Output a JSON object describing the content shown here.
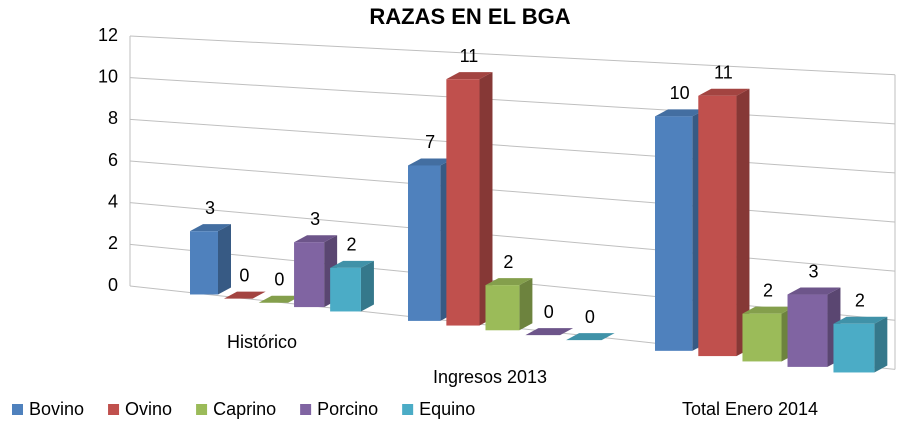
{
  "chart_data": {
    "type": "bar3d",
    "title": "RAZAS EN EL BGA",
    "categories": [
      "Histórico",
      "Ingresos 2013",
      "Total Enero 2014"
    ],
    "series": [
      {
        "name": "Bovino",
        "color": "#4f81bd",
        "values": [
          3,
          7,
          10
        ]
      },
      {
        "name": "Ovino",
        "color": "#c0504d",
        "values": [
          0,
          11,
          11
        ]
      },
      {
        "name": "Caprino",
        "color": "#9bbb59",
        "values": [
          0,
          2,
          2
        ]
      },
      {
        "name": "Porcino",
        "color": "#8064a2",
        "values": [
          3,
          0,
          3
        ]
      },
      {
        "name": "Equino",
        "color": "#4bacc6",
        "values": [
          2,
          0,
          2
        ]
      }
    ],
    "ylim": [
      0,
      12
    ],
    "yticks": [
      0,
      2,
      4,
      6,
      8,
      10,
      12
    ],
    "grid": true,
    "legend": "bottom"
  }
}
